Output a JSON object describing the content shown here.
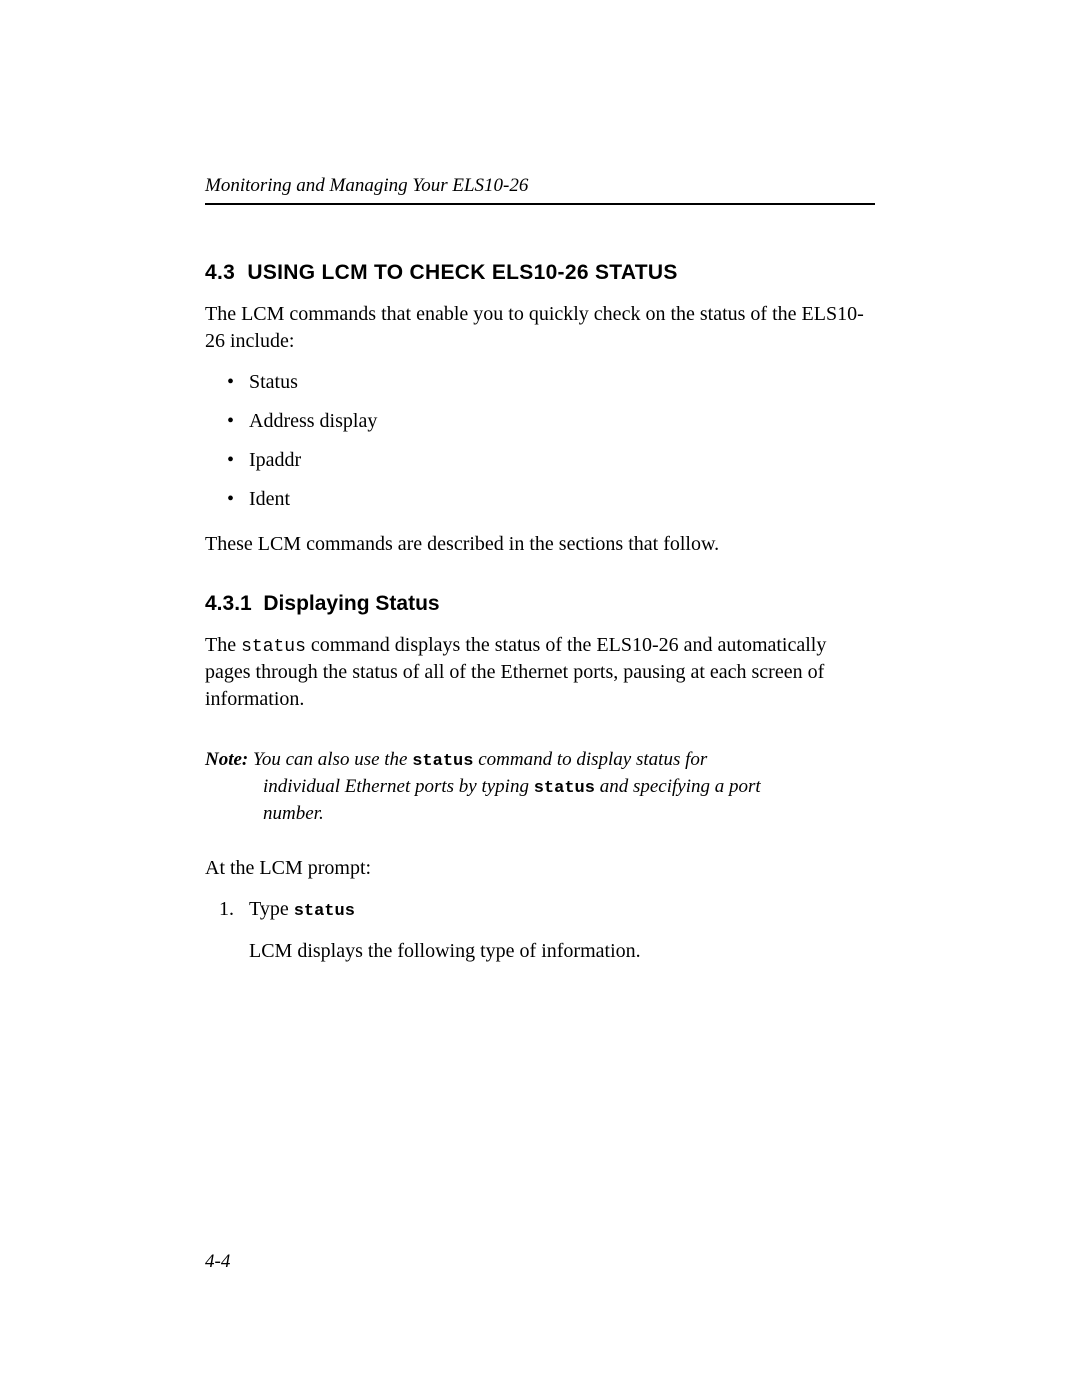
{
  "header": {
    "running_title": "Monitoring and Managing Your ELS10-26"
  },
  "section": {
    "number": "4.3",
    "title": "USING LCM TO CHECK ELS10-26 STATUS",
    "intro": "The LCM commands that enable you to quickly check on the status of the ELS10-26 include:",
    "bullets": [
      "Status",
      "Address display",
      "Ipaddr",
      "Ident"
    ],
    "followup": "These LCM commands are described in the sections that follow."
  },
  "subsection": {
    "number": "4.3.1",
    "title": "Displaying Status",
    "para1_pre": "The ",
    "para1_code": "status",
    "para1_post": " command displays the status of the ELS10-26 and automatically pages through the status of all of the Ethernet ports, pausing at each screen of information.",
    "note_label": "Note:",
    "note_line1_pre": " You can also use the ",
    "note_code1": "status",
    "note_line1_post": " command to display status for",
    "note_line2_pre": "individual Ethernet ports by typing ",
    "note_code2": "status",
    "note_line2_post": " and specifying a port",
    "note_line3": "number.",
    "prompt_text": "At the LCM prompt:",
    "step1_number": "1.",
    "step1_pre": "Type ",
    "step1_code": "status",
    "step1_result": "LCM displays the following type of information."
  },
  "footer": {
    "page_number": "4-4"
  }
}
